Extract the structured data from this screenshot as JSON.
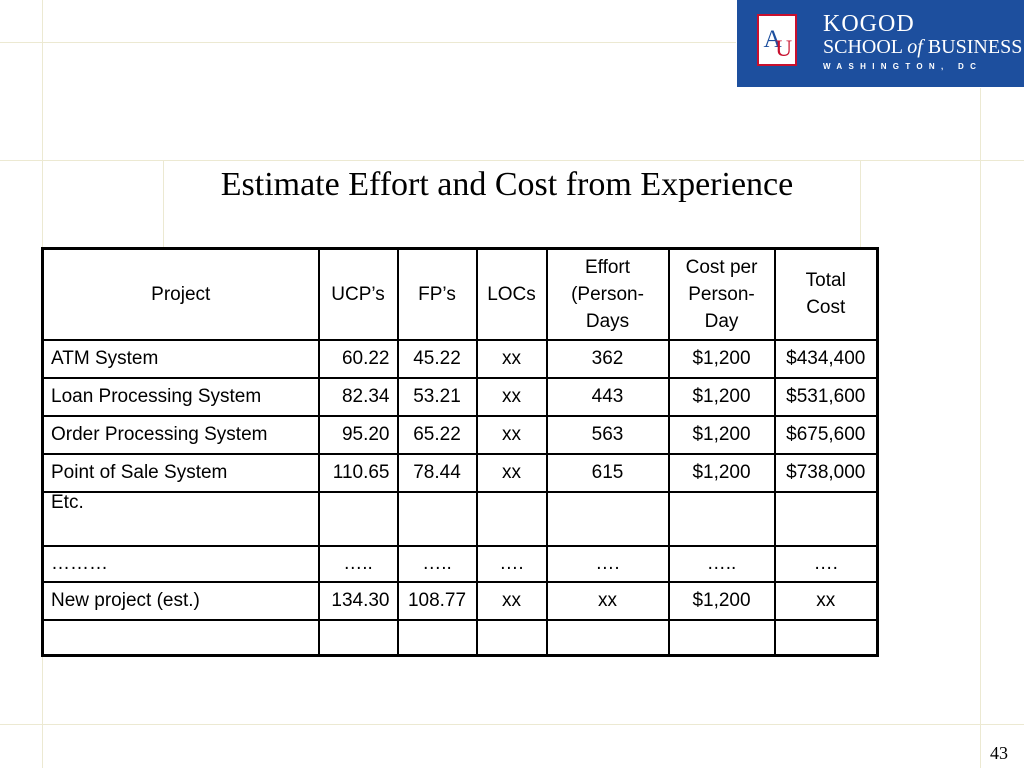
{
  "logo": {
    "line1": "KOGOD",
    "line2": "SCHOOL of BUSINESS",
    "line3": "WASHINGTON, DC",
    "seal_letters": "AU",
    "bg_color": "#1d4f9e",
    "accent_color": "#c8102e"
  },
  "title": "Estimate Effort and Cost from Experience",
  "table": {
    "headers": [
      "Project",
      "UCP’s",
      "FP’s",
      "LOCs",
      "Effort (Person-Days",
      "Cost per Person-Day",
      "Total Cost"
    ],
    "rows": [
      [
        "ATM System",
        "60.22",
        "45.22",
        "xx",
        "362",
        "$1,200",
        "$434,400"
      ],
      [
        "Loan Processing System",
        "82.34",
        "53.21",
        "xx",
        "443",
        "$1,200",
        "$531,600"
      ],
      [
        "Order Processing System",
        "95.20",
        "65.22",
        "xx",
        "563",
        "$1,200",
        "$675,600"
      ],
      [
        "Point of Sale System",
        "110.65",
        "78.44",
        "xx",
        "615",
        "$1,200",
        "$738,000"
      ],
      [
        "Etc.",
        "",
        "",
        "",
        "",
        "",
        ""
      ],
      [
        "………",
        "…..",
        "…..",
        "….",
        "….",
        "…..",
        "…."
      ],
      [
        "New project (est.)",
        "134.30",
        "108.77",
        "xx",
        "xx",
        "$1,200",
        "xx"
      ],
      [
        "",
        "",
        "",
        "",
        "",
        "",
        ""
      ]
    ]
  },
  "page_number": "43"
}
